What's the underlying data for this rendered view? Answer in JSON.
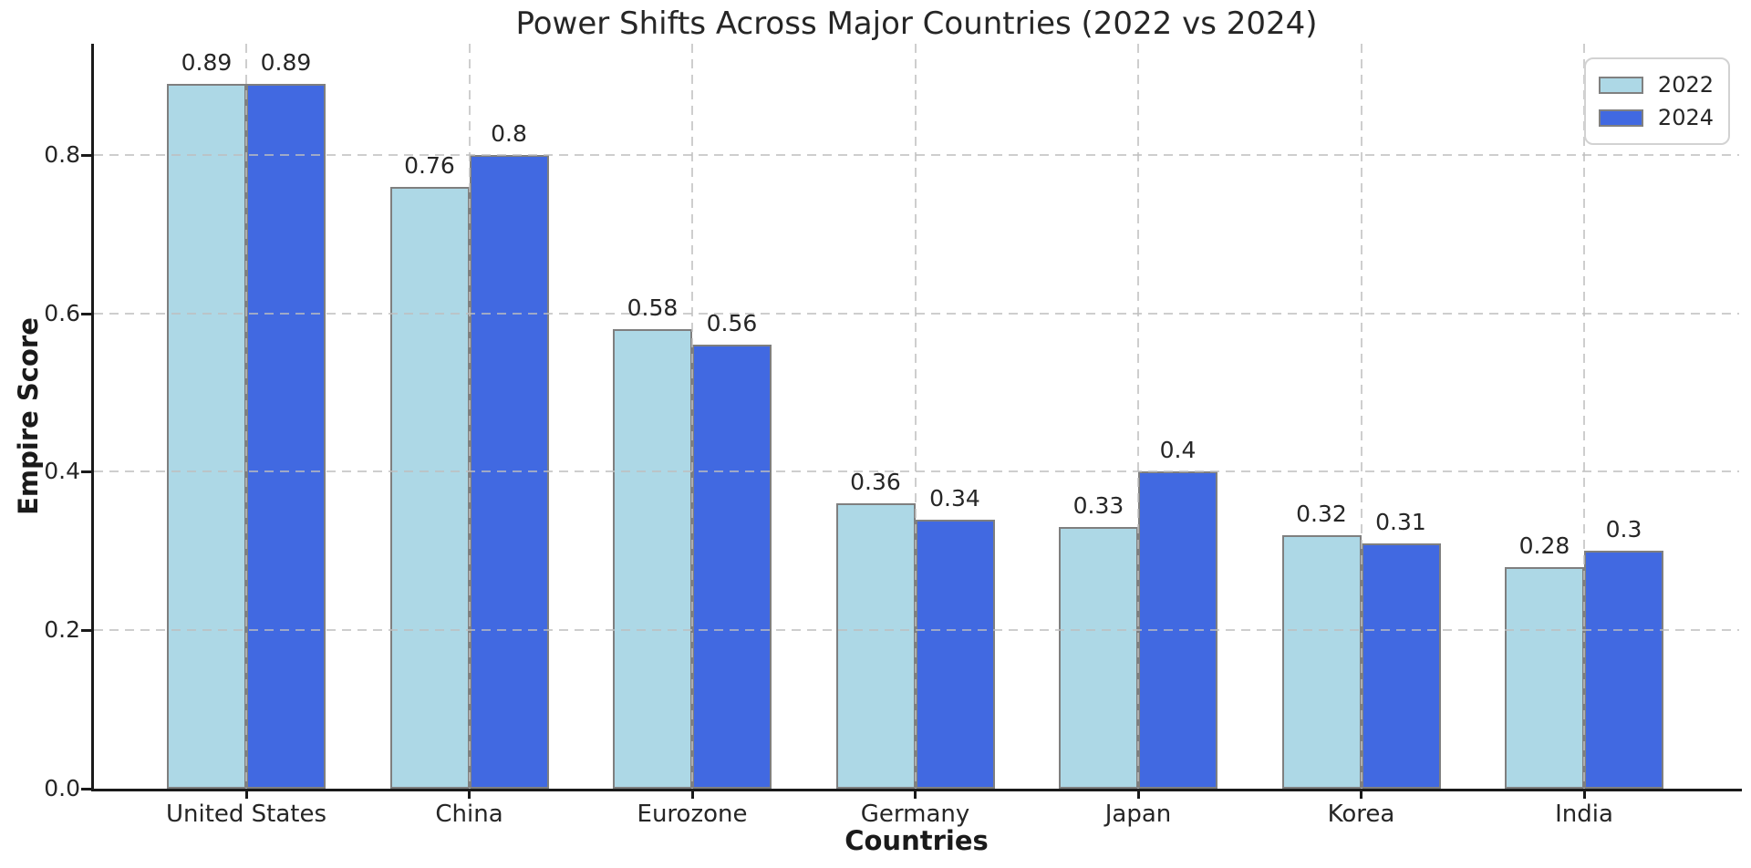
{
  "chart_data": {
    "type": "bar",
    "title": "Power Shifts Across Major Countries (2022 vs 2024)",
    "xlabel": "Countries",
    "ylabel": "Empire Score",
    "categories": [
      "United States",
      "China",
      "Eurozone",
      "Germany",
      "Japan",
      "Korea",
      "India"
    ],
    "series": [
      {
        "name": "2022",
        "color": "#ADD8E6",
        "values": [
          0.89,
          0.76,
          0.58,
          0.36,
          0.33,
          0.32,
          0.28
        ],
        "labels": [
          "0.89",
          "0.76",
          "0.58",
          "0.36",
          "0.33",
          "0.32",
          "0.28"
        ]
      },
      {
        "name": "2024",
        "color": "#4169E1",
        "values": [
          0.89,
          0.8,
          0.56,
          0.34,
          0.4,
          0.31,
          0.3
        ],
        "labels": [
          "0.89",
          "0.8",
          "0.56",
          "0.34",
          "0.4",
          "0.31",
          "0.3"
        ]
      }
    ],
    "yticks": [
      0.0,
      0.2,
      0.4,
      0.6,
      0.8
    ],
    "ytick_labels": [
      "0.0",
      "0.2",
      "0.4",
      "0.6",
      "0.8"
    ],
    "ylim": [
      0,
      0.94
    ],
    "grid": "dashed, horizontal at y ticks and vertical at category centers, drawn above bars",
    "legend_position": "upper right",
    "bar_edge_color": "#7f7f7f",
    "grid_color": "#bebebe",
    "spine_color": "#1a1a1a",
    "text_color": "#262626"
  }
}
